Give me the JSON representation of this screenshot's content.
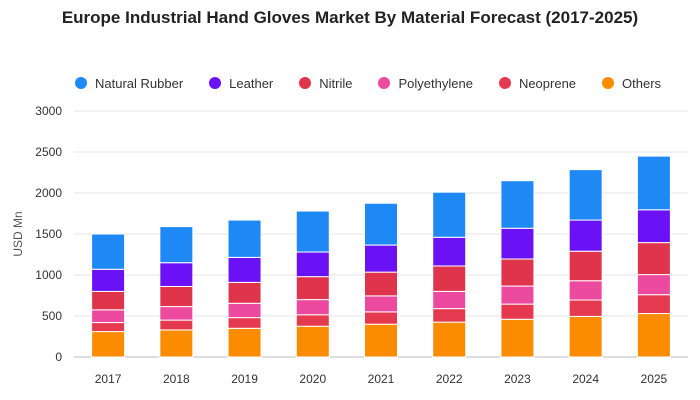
{
  "chart_data": {
    "type": "bar",
    "stacked": true,
    "title": "Europe Industrial Hand Gloves Market By Material Forecast (2017-2025)",
    "xlabel": "",
    "ylabel": "USD Mn",
    "ylim": [
      0,
      3000
    ],
    "yticks": [
      0,
      500,
      1000,
      1500,
      2000,
      2500,
      3000
    ],
    "grid": true,
    "legend_position": "top",
    "categories": [
      "2017",
      "2018",
      "2019",
      "2020",
      "2021",
      "2022",
      "2023",
      "2024",
      "2025"
    ],
    "series": [
      {
        "name": "Others",
        "color": "#FB8C00",
        "values": [
          310,
          330,
          350,
          375,
          400,
          425,
          460,
          495,
          530
        ]
      },
      {
        "name": "Neoprene",
        "color": "#E53950",
        "values": [
          110,
          120,
          130,
          140,
          150,
          165,
          185,
          200,
          230
        ]
      },
      {
        "name": "Polyethylene",
        "color": "#EC4A9E",
        "values": [
          155,
          165,
          175,
          185,
          195,
          210,
          220,
          235,
          245
        ]
      },
      {
        "name": "Nitrile",
        "color": "#E0344C",
        "values": [
          225,
          245,
          255,
          280,
          290,
          310,
          330,
          360,
          390
        ]
      },
      {
        "name": "Leather",
        "color": "#6A11F5",
        "values": [
          270,
          290,
          305,
          300,
          330,
          350,
          375,
          380,
          400
        ]
      },
      {
        "name": "Natural Rubber",
        "color": "#1E88F5",
        "values": [
          430,
          440,
          455,
          500,
          510,
          550,
          580,
          615,
          655
        ]
      }
    ],
    "legend_order": [
      "Natural Rubber",
      "Leather",
      "Nitrile",
      "Polyethylene",
      "Neoprene",
      "Others"
    ]
  }
}
